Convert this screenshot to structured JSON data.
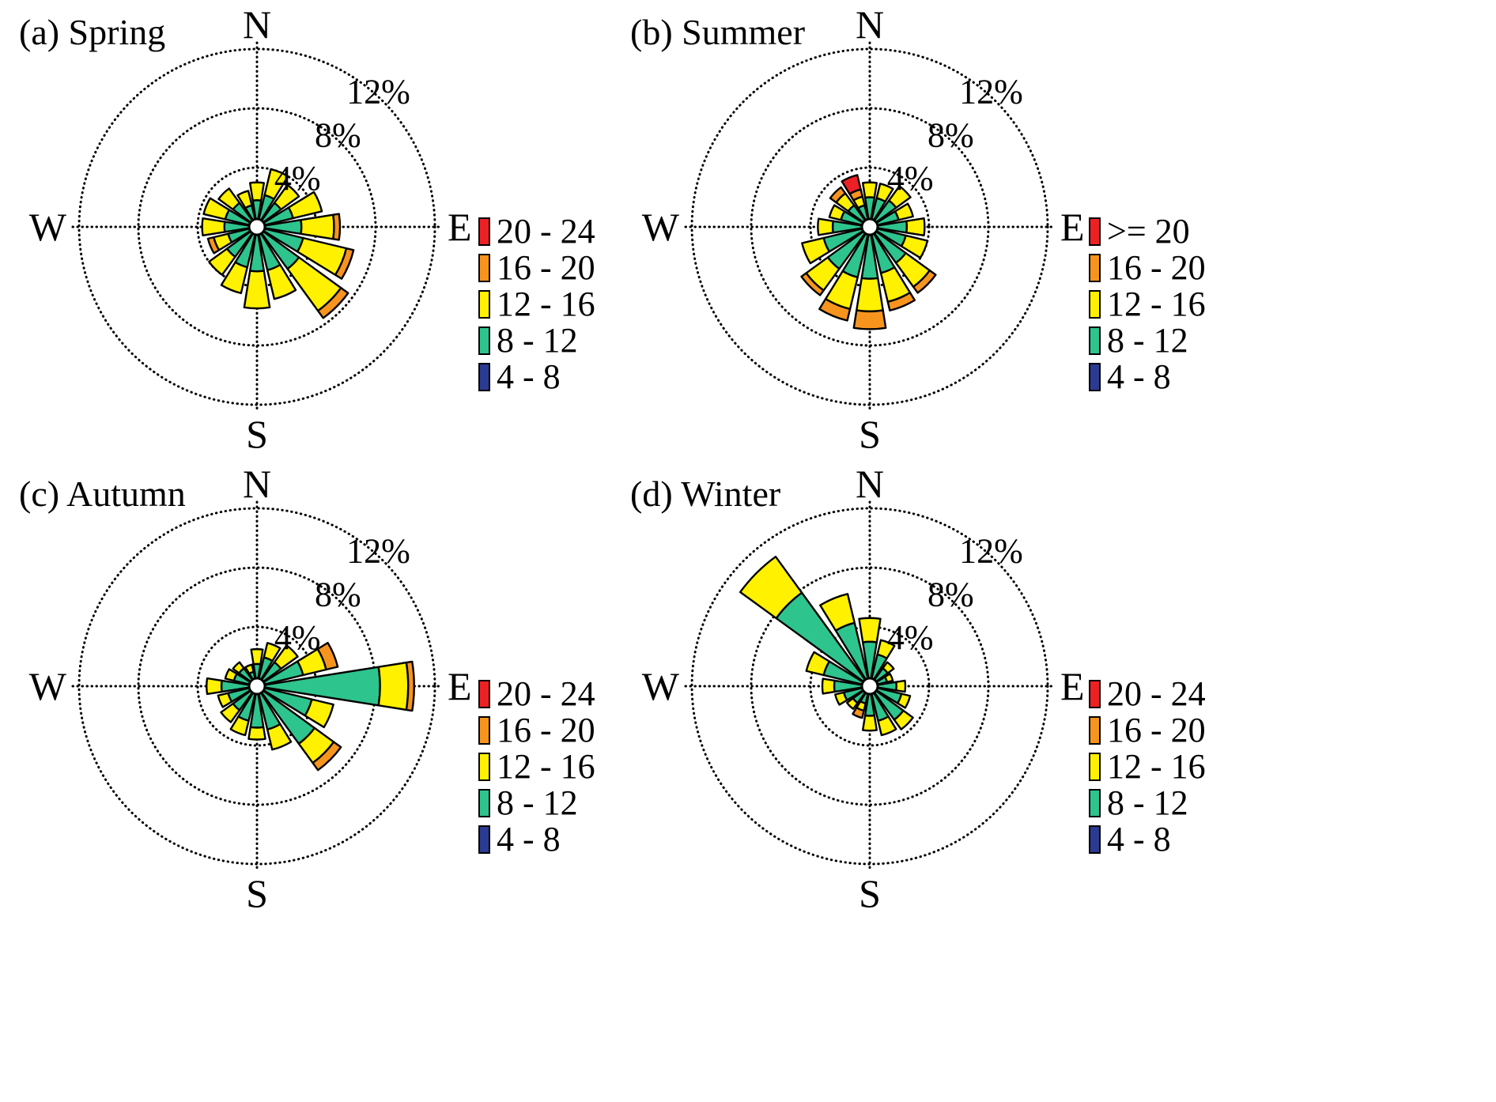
{
  "panels": [
    {
      "id": "a",
      "title": "(a) Spring",
      "compass": {
        "n": "N",
        "e": "E",
        "s": "S",
        "w": "W"
      },
      "ring_labels": [
        "4%",
        "8%",
        "12%"
      ],
      "legend": [
        {
          "label": "20 - 24",
          "color": "#ed2024"
        },
        {
          "label": "16 - 20",
          "color": "#f7941e"
        },
        {
          "label": "12 - 16",
          "color": "#fff100"
        },
        {
          "label": "8 - 12",
          "color": "#2ec48e"
        },
        {
          "label": "4 - 8",
          "color": "#2b3a92"
        }
      ]
    },
    {
      "id": "b",
      "title": "(b) Summer",
      "compass": {
        "n": "N",
        "e": "E",
        "s": "S",
        "w": "W"
      },
      "ring_labels": [
        "4%",
        "8%",
        "12%"
      ],
      "legend": [
        {
          "label": ">= 20",
          "color": "#ed2024"
        },
        {
          "label": "16 - 20",
          "color": "#f7941e"
        },
        {
          "label": "12 - 16",
          "color": "#fff100"
        },
        {
          "label": "8 - 12",
          "color": "#2ec48e"
        },
        {
          "label": "4 - 8",
          "color": "#2b3a92"
        }
      ]
    },
    {
      "id": "c",
      "title": "(c) Autumn",
      "compass": {
        "n": "N",
        "e": "E",
        "s": "S",
        "w": "W"
      },
      "ring_labels": [
        "4%",
        "8%",
        "12%"
      ],
      "legend": [
        {
          "label": "20 - 24",
          "color": "#ed2024"
        },
        {
          "label": "16 - 20",
          "color": "#f7941e"
        },
        {
          "label": "12 - 16",
          "color": "#fff100"
        },
        {
          "label": "8 - 12",
          "color": "#2ec48e"
        },
        {
          "label": "4 - 8",
          "color": "#2b3a92"
        }
      ]
    },
    {
      "id": "d",
      "title": "(d) Winter",
      "compass": {
        "n": "N",
        "e": "E",
        "s": "S",
        "w": "W"
      },
      "ring_labels": [
        "4%",
        "8%",
        "12%"
      ],
      "legend": [
        {
          "label": "20 - 24",
          "color": "#ed2024"
        },
        {
          "label": "16 - 20",
          "color": "#f7941e"
        },
        {
          "label": "12 - 16",
          "color": "#fff100"
        },
        {
          "label": "8 - 12",
          "color": "#2ec48e"
        },
        {
          "label": "4 - 8",
          "color": "#2b3a92"
        }
      ]
    }
  ],
  "chart_data": [
    {
      "type": "windrose",
      "title": "(a) Spring",
      "note": "polar stacked bar; rings show frequency percent, stacks are wind-speed bins",
      "directions": [
        "N",
        "NNE",
        "NE",
        "ENE",
        "E",
        "ESE",
        "SE",
        "SSE",
        "S",
        "SSW",
        "SW",
        "WSW",
        "W",
        "WNW",
        "NW",
        "NNW"
      ],
      "ring_ticks_percent": [
        4,
        8,
        12
      ],
      "rmax_percent": 12,
      "series": [
        {
          "name": "4 - 8",
          "color": "#2b3a92",
          "values": [
            0,
            0,
            0,
            0,
            0,
            0,
            0,
            0,
            0,
            0,
            0,
            0,
            0,
            0,
            0,
            0
          ]
        },
        {
          "name": "8 - 12",
          "color": "#2ec48e",
          "values": [
            1.8,
            2.2,
            2.0,
            2.5,
            3.0,
            3.2,
            3.5,
            3.0,
            3.0,
            2.8,
            2.5,
            2.0,
            2.2,
            2.2,
            2.0,
            1.5
          ]
        },
        {
          "name": "12 - 16",
          "color": "#fff100",
          "values": [
            1.2,
            1.8,
            1.5,
            2.0,
            2.2,
            3.0,
            3.5,
            2.0,
            2.5,
            1.8,
            1.5,
            1.0,
            1.5,
            1.5,
            1.2,
            1.0
          ]
        },
        {
          "name": "16 - 20",
          "color": "#f7941e",
          "values": [
            0,
            0,
            0,
            0,
            0.4,
            0.5,
            0.6,
            0,
            0,
            0,
            0,
            0.4,
            0,
            0,
            0,
            0
          ]
        },
        {
          "name": "20 - 24",
          "color": "#ed2024",
          "values": [
            0,
            0,
            0,
            0,
            0,
            0,
            0,
            0,
            0,
            0,
            0,
            0,
            0,
            0,
            0,
            0
          ]
        }
      ]
    },
    {
      "type": "windrose",
      "title": "(b) Summer",
      "note": "polar stacked bar; rings show frequency percent, stacks are wind-speed bins",
      "directions": [
        "N",
        "NNE",
        "NE",
        "ENE",
        "E",
        "ESE",
        "SE",
        "SSE",
        "S",
        "SSW",
        "SW",
        "WSW",
        "W",
        "WNW",
        "NW",
        "NNW"
      ],
      "ring_ticks_percent": [
        4,
        8,
        12
      ],
      "rmax_percent": 12,
      "series": [
        {
          "name": "4 - 8",
          "color": "#2b3a92",
          "values": [
            0,
            0,
            0,
            0,
            0,
            0,
            0,
            0,
            0,
            0,
            0,
            0,
            0,
            0,
            0,
            0
          ]
        },
        {
          "name": "8 - 12",
          "color": "#2ec48e",
          "values": [
            2.0,
            2.0,
            2.2,
            2.0,
            2.5,
            2.5,
            3.0,
            3.2,
            3.5,
            3.5,
            3.5,
            3.2,
            2.5,
            2.0,
            1.8,
            1.5
          ]
        },
        {
          "name": "12 - 16",
          "color": "#fff100",
          "values": [
            1.0,
            1.0,
            1.2,
            1.0,
            1.2,
            1.5,
            2.0,
            2.0,
            2.2,
            2.2,
            1.8,
            1.5,
            1.0,
            0.8,
            1.0,
            0.6
          ]
        },
        {
          "name": "16 - 20",
          "color": "#f7941e",
          "values": [
            0,
            0,
            0,
            0,
            0,
            0,
            0.5,
            0.6,
            1.2,
            0.8,
            0.4,
            0,
            0,
            0,
            0.5,
            0.5
          ]
        },
        {
          "name": ">= 20",
          "color": "#ed2024",
          "values": [
            0,
            0,
            0,
            0,
            0,
            0,
            0,
            0,
            0,
            0,
            0,
            0,
            0,
            0,
            0,
            1.0
          ]
        }
      ]
    },
    {
      "type": "windrose",
      "title": "(c) Autumn",
      "note": "polar stacked bar; rings show frequency percent, stacks are wind-speed bins",
      "directions": [
        "N",
        "NNE",
        "NE",
        "ENE",
        "E",
        "ESE",
        "SE",
        "SSE",
        "S",
        "SSW",
        "SW",
        "WSW",
        "W",
        "WNW",
        "NW",
        "NNW"
      ],
      "ring_ticks_percent": [
        4,
        8,
        12
      ],
      "rmax_percent": 12,
      "series": [
        {
          "name": "4 - 8",
          "color": "#2b3a92",
          "values": [
            0,
            0,
            0,
            0,
            0,
            0,
            0,
            0,
            0,
            0,
            0,
            0,
            0,
            0,
            0,
            0
          ]
        },
        {
          "name": "8 - 12",
          "color": "#2ec48e",
          "values": [
            1.5,
            2.0,
            2.0,
            3.2,
            8.3,
            3.8,
            4.8,
            3.0,
            2.8,
            2.4,
            2.0,
            2.0,
            2.4,
            1.6,
            1.5,
            1.0
          ]
        },
        {
          "name": "12 - 16",
          "color": "#fff100",
          "values": [
            1.0,
            1.0,
            1.4,
            1.6,
            1.9,
            1.5,
            1.6,
            1.4,
            0.8,
            1.0,
            1.0,
            0.7,
            1.0,
            0.6,
            0.5,
            0.5
          ]
        },
        {
          "name": "16 - 20",
          "color": "#f7941e",
          "values": [
            0,
            0,
            0,
            0.8,
            0.4,
            0,
            0.6,
            0,
            0,
            0,
            0,
            0,
            0,
            0,
            0,
            0
          ]
        },
        {
          "name": "20 - 24",
          "color": "#ed2024",
          "values": [
            0,
            0,
            0,
            0,
            0,
            0,
            0,
            0,
            0,
            0,
            0,
            0,
            0,
            0,
            0,
            0
          ]
        }
      ]
    },
    {
      "type": "windrose",
      "title": "(d) Winter",
      "note": "polar stacked bar; rings show frequency percent, stacks are wind-speed bins",
      "directions": [
        "N",
        "NNE",
        "NE",
        "ENE",
        "E",
        "ESE",
        "SE",
        "SSE",
        "S",
        "SSW",
        "SW",
        "WSW",
        "W",
        "WNW",
        "NW",
        "NNW"
      ],
      "ring_ticks_percent": [
        4,
        8,
        12
      ],
      "rmax_percent": 12,
      "series": [
        {
          "name": "4 - 8",
          "color": "#2b3a92",
          "values": [
            0,
            0,
            0,
            0,
            0,
            0,
            0,
            0,
            0,
            0,
            0,
            0,
            0,
            0,
            0,
            0
          ]
        },
        {
          "name": "8 - 12",
          "color": "#2ec48e",
          "values": [
            3.0,
            2.2,
            1.5,
            1.2,
            1.8,
            2.2,
            2.8,
            2.4,
            2.0,
            1.2,
            1.4,
            1.8,
            2.4,
            3.2,
            7.8,
            4.4
          ]
        },
        {
          "name": "12 - 16",
          "color": "#fff100",
          "values": [
            1.6,
            1.0,
            0.5,
            0.4,
            0.6,
            0.6,
            0.8,
            1.0,
            1.0,
            0.5,
            0.5,
            0.6,
            0.8,
            1.2,
            3.0,
            2.0
          ]
        },
        {
          "name": "16 - 20",
          "color": "#f7941e",
          "values": [
            0,
            0,
            0,
            0,
            0,
            0,
            0,
            0,
            0,
            0.5,
            0,
            0,
            0,
            0,
            0,
            0
          ]
        },
        {
          "name": "20 - 24",
          "color": "#ed2024",
          "values": [
            0,
            0,
            0,
            0,
            0,
            0,
            0,
            0,
            0,
            0,
            0,
            0,
            0,
            0,
            0,
            0
          ]
        }
      ]
    }
  ]
}
